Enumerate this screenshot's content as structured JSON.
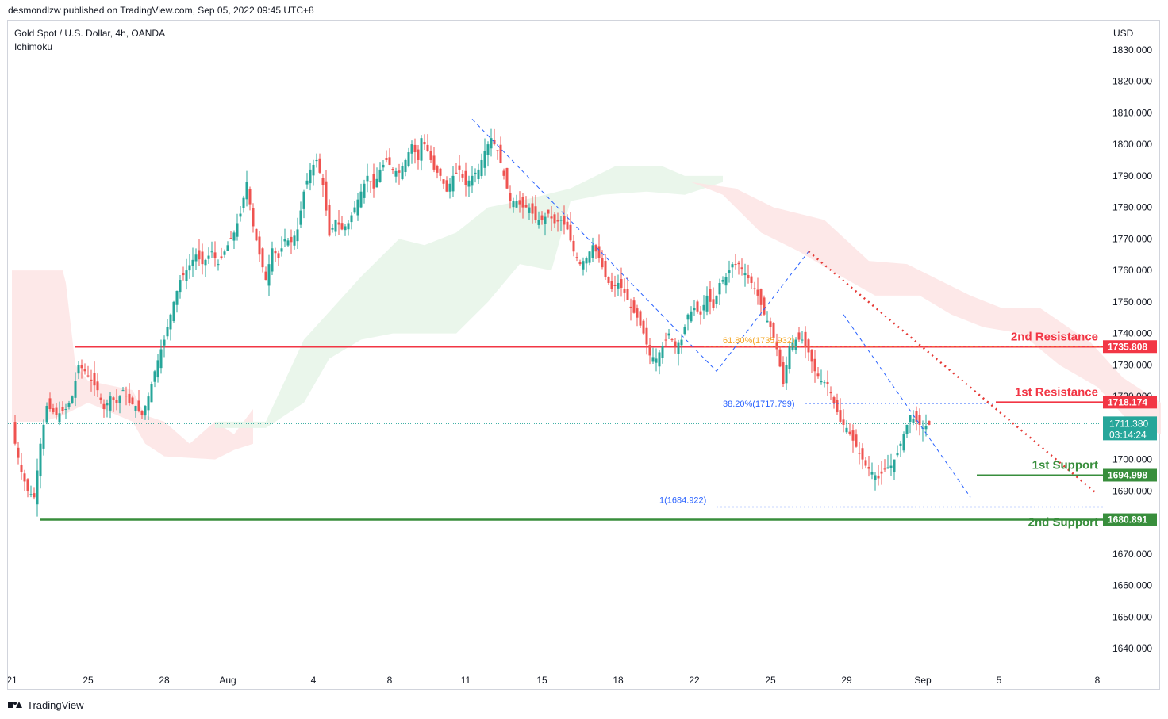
{
  "header": {
    "published_by": "desmondlzw published on TradingView.com, Sep 05, 2022 09:45 UTC+8"
  },
  "footer": {
    "brand": "TradingView"
  },
  "chart_data": {
    "type": "candlestick",
    "title": "Gold Spot / U.S. Dollar, 4h, OANDA",
    "indicator": "Ichimoku",
    "currency": "USD",
    "ylim": [
      1636,
      1839
    ],
    "y_ticks": [
      1640,
      1650,
      1660,
      1670,
      1680,
      1690,
      1700,
      1710,
      1720,
      1730,
      1740,
      1750,
      1760,
      1770,
      1780,
      1790,
      1800,
      1810,
      1820,
      1830
    ],
    "x_labels": [
      {
        "label": "21",
        "bar": 0
      },
      {
        "label": "25",
        "bar": 24
      },
      {
        "label": "28",
        "bar": 48
      },
      {
        "label": "Aug",
        "bar": 68
      },
      {
        "label": "4",
        "bar": 95
      },
      {
        "label": "8",
        "bar": 119
      },
      {
        "label": "11",
        "bar": 143
      },
      {
        "label": "15",
        "bar": 167
      },
      {
        "label": "18",
        "bar": 191
      },
      {
        "label": "22",
        "bar": 215
      },
      {
        "label": "25",
        "bar": 239
      },
      {
        "label": "29",
        "bar": 263
      },
      {
        "label": "Sep",
        "bar": 287
      },
      {
        "label": "5",
        "bar": 311
      },
      {
        "label": "8",
        "bar": 342
      }
    ],
    "key_points": [
      [
        0,
        1712
      ],
      [
        1,
        1705
      ],
      [
        3,
        1696
      ],
      [
        5,
        1690
      ],
      [
        7,
        1688
      ],
      [
        9,
        1705
      ],
      [
        11,
        1717
      ],
      [
        14,
        1714
      ],
      [
        17,
        1716
      ],
      [
        19,
        1720
      ],
      [
        21,
        1730
      ],
      [
        23,
        1728
      ],
      [
        25,
        1725
      ],
      [
        27,
        1722
      ],
      [
        29,
        1716
      ],
      [
        31,
        1720
      ],
      [
        33,
        1718
      ],
      [
        35,
        1722
      ],
      [
        37,
        1718
      ],
      [
        39,
        1717
      ],
      [
        41,
        1714
      ],
      [
        43,
        1720
      ],
      [
        45,
        1728
      ],
      [
        47,
        1735
      ],
      [
        48,
        1738
      ],
      [
        51,
        1750
      ],
      [
        53,
        1757
      ],
      [
        55,
        1760
      ],
      [
        58,
        1765
      ],
      [
        60,
        1762
      ],
      [
        63,
        1766
      ],
      [
        65,
        1762
      ],
      [
        68,
        1768
      ],
      [
        70,
        1772
      ],
      [
        72,
        1778
      ],
      [
        74,
        1788
      ],
      [
        76,
        1774
      ],
      [
        78,
        1765
      ],
      [
        80,
        1757
      ],
      [
        82,
        1767
      ],
      [
        84,
        1764
      ],
      [
        86,
        1770
      ],
      [
        88,
        1769
      ],
      [
        90,
        1773
      ],
      [
        92,
        1785
      ],
      [
        94,
        1792
      ],
      [
        96,
        1795
      ],
      [
        98,
        1787
      ],
      [
        100,
        1771
      ],
      [
        102,
        1776
      ],
      [
        104,
        1773
      ],
      [
        106,
        1775
      ],
      [
        108,
        1780
      ],
      [
        110,
        1785
      ],
      [
        112,
        1790
      ],
      [
        114,
        1786
      ],
      [
        116,
        1792
      ],
      [
        118,
        1795
      ],
      [
        120,
        1792
      ],
      [
        122,
        1791
      ],
      [
        124,
        1795
      ],
      [
        126,
        1800
      ],
      [
        128,
        1795
      ],
      [
        129,
        1802
      ],
      [
        131,
        1798
      ],
      [
        133,
        1792
      ],
      [
        135,
        1790
      ],
      [
        137,
        1785
      ],
      [
        139,
        1790
      ],
      [
        141,
        1792
      ],
      [
        143,
        1787
      ],
      [
        145,
        1790
      ],
      [
        147,
        1792
      ],
      [
        149,
        1798
      ],
      [
        151,
        1802
      ],
      [
        153,
        1798
      ],
      [
        155,
        1790
      ],
      [
        157,
        1782
      ],
      [
        159,
        1782
      ],
      [
        161,
        1780
      ],
      [
        163,
        1780
      ],
      [
        165,
        1776
      ],
      [
        167,
        1776
      ],
      [
        169,
        1778
      ],
      [
        171,
        1775
      ],
      [
        173,
        1776
      ],
      [
        175,
        1773
      ],
      [
        177,
        1766
      ],
      [
        179,
        1762
      ],
      [
        181,
        1764
      ],
      [
        183,
        1768
      ],
      [
        185,
        1764
      ],
      [
        187,
        1758
      ],
      [
        189,
        1754
      ],
      [
        191,
        1756
      ],
      [
        193,
        1753
      ],
      [
        195,
        1748
      ],
      [
        197,
        1745
      ],
      [
        199,
        1740
      ],
      [
        201,
        1733
      ],
      [
        203,
        1732
      ],
      [
        205,
        1736
      ],
      [
        207,
        1740
      ],
      [
        209,
        1736
      ],
      [
        211,
        1738
      ],
      [
        213,
        1746
      ],
      [
        215,
        1748
      ],
      [
        217,
        1746
      ],
      [
        219,
        1752
      ],
      [
        221,
        1748
      ],
      [
        223,
        1756
      ],
      [
        225,
        1758
      ],
      [
        227,
        1762
      ],
      [
        229,
        1762
      ],
      [
        231,
        1759
      ],
      [
        233,
        1756
      ],
      [
        235,
        1752
      ],
      [
        237,
        1746
      ],
      [
        239,
        1742
      ],
      [
        241,
        1735
      ],
      [
        243,
        1724
      ],
      [
        245,
        1736
      ],
      [
        247,
        1738
      ],
      [
        249,
        1738
      ],
      [
        251,
        1734
      ],
      [
        253,
        1728
      ],
      [
        255,
        1725
      ],
      [
        257,
        1724
      ],
      [
        259,
        1718
      ],
      [
        261,
        1712
      ],
      [
        263,
        1710
      ],
      [
        265,
        1706
      ],
      [
        267,
        1702
      ],
      [
        269,
        1698
      ],
      [
        271,
        1696
      ],
      [
        273,
        1694
      ],
      [
        275,
        1697
      ],
      [
        277,
        1698
      ],
      [
        279,
        1702
      ],
      [
        281,
        1708
      ],
      [
        283,
        1714
      ],
      [
        285,
        1712
      ],
      [
        287,
        1710
      ],
      [
        289,
        1711
      ]
    ],
    "annotations": {
      "fib_618": "61.80%(1735.932)",
      "fib_382": "38.20%(1717.799)",
      "fib_1": "1(1684.922)",
      "second_resistance_label": "2nd Resistance",
      "first_resistance_label": "1st Resistance",
      "first_support_label": "1st Support",
      "second_support_label": "2nd Support",
      "second_resistance": 1735.808,
      "first_resistance": 1718.174,
      "first_support": 1694.998,
      "second_support": 1680.891,
      "current_price": 1711.38,
      "fib_618_value": 1735.932,
      "fib_382_value": 1717.799,
      "fib_1_value": 1684.922
    },
    "price_labels": {
      "second_resistance": "1735.808",
      "first_resistance": "1718.174",
      "current_price": "1711.380",
      "countdown": "03:14:24",
      "first_support": "1694.998",
      "second_support": "1680.891"
    },
    "colors": {
      "up": "#26a69a",
      "down": "#ef5350",
      "resistance": "#f23645",
      "support": "#388e3c",
      "cloud_bull": "#e8f5e9",
      "cloud_bear": "#fde4e4",
      "fib_line": "#2962ff",
      "fib_gold": "#f5a623",
      "trend_dotted": "#e53935"
    }
  }
}
